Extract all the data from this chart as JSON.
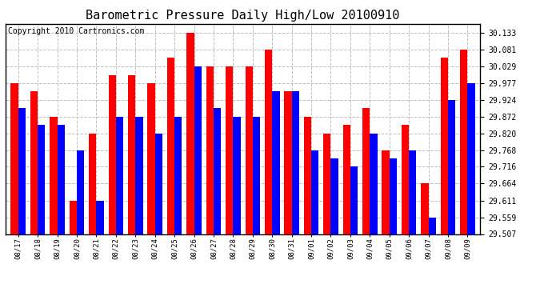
{
  "title": "Barometric Pressure Daily High/Low 20100910",
  "copyright": "Copyright 2010 Cartronics.com",
  "categories": [
    "08/17",
    "08/18",
    "08/19",
    "08/20",
    "08/21",
    "08/22",
    "08/23",
    "08/24",
    "08/25",
    "08/26",
    "08/27",
    "08/28",
    "08/29",
    "08/30",
    "08/31",
    "09/01",
    "09/02",
    "09/03",
    "09/04",
    "09/05",
    "09/06",
    "09/07",
    "09/08",
    "09/09"
  ],
  "highs": [
    29.977,
    29.95,
    29.872,
    29.61,
    29.82,
    30.0,
    30.0,
    29.977,
    30.055,
    30.133,
    30.029,
    30.029,
    30.029,
    30.081,
    29.95,
    29.872,
    29.82,
    29.846,
    29.898,
    29.768,
    29.846,
    29.664,
    30.055,
    30.081
  ],
  "lows": [
    29.898,
    29.846,
    29.846,
    29.768,
    29.611,
    29.872,
    29.872,
    29.82,
    29.872,
    30.029,
    29.898,
    29.872,
    29.872,
    29.95,
    29.95,
    29.768,
    29.742,
    29.716,
    29.82,
    29.742,
    29.768,
    29.559,
    29.924,
    29.977
  ],
  "ylim_min": 29.507,
  "ylim_max": 30.16,
  "yticks": [
    30.133,
    30.081,
    30.029,
    29.977,
    29.924,
    29.872,
    29.82,
    29.768,
    29.716,
    29.664,
    29.611,
    29.559,
    29.507
  ],
  "bar_color_high": "#ff0000",
  "bar_color_low": "#0000ff",
  "background_color": "#ffffff",
  "grid_color": "#c0c0c0",
  "title_fontsize": 11,
  "copyright_fontsize": 7,
  "bar_width": 0.38
}
